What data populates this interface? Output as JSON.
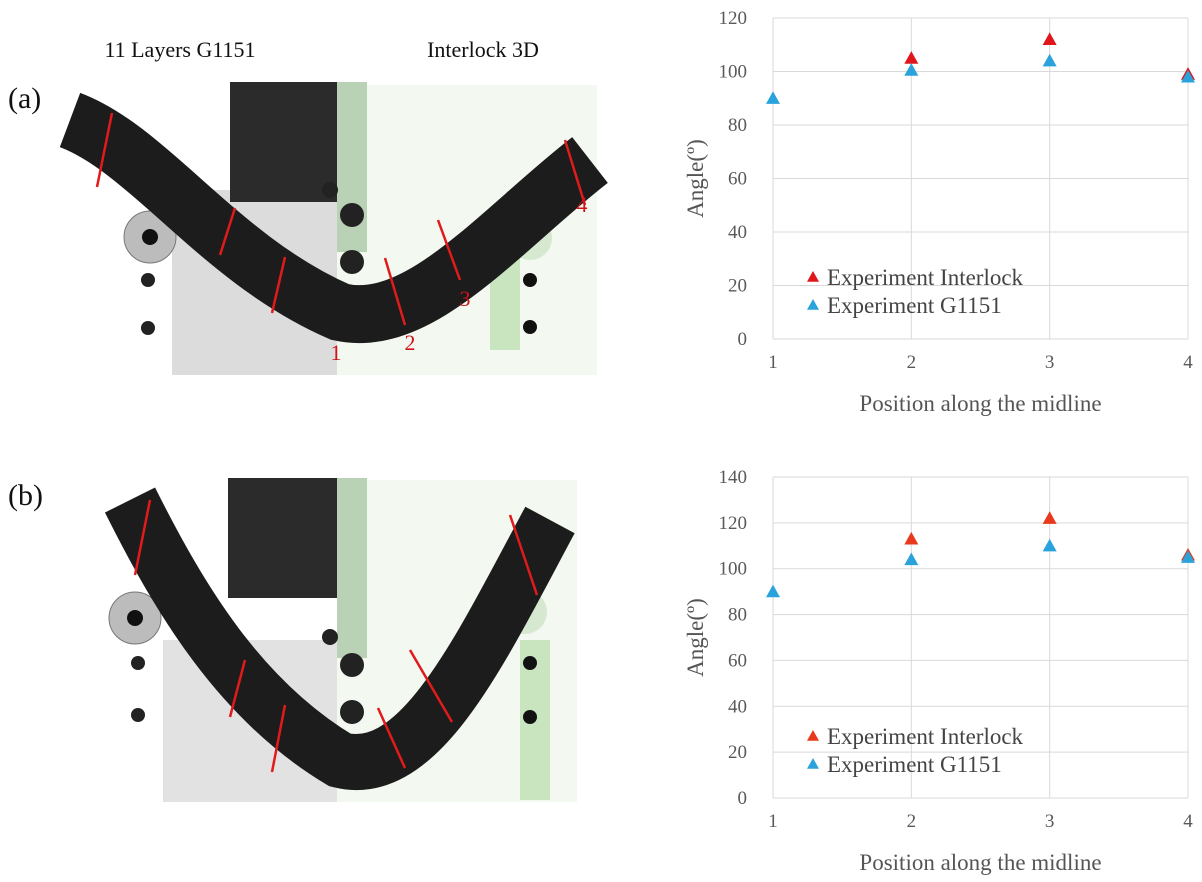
{
  "figure": {
    "column_titles": [
      "11 Layers G1151",
      "Interlock 3D"
    ],
    "panels": [
      {
        "label": "(a)",
        "markers": [
          "1",
          "2",
          "3",
          "4"
        ]
      },
      {
        "label": "(b)"
      }
    ]
  },
  "chart_data": [
    {
      "type": "scatter",
      "x_label": "Position along the midline",
      "y_label": "Angle(º)",
      "x": [
        1,
        2,
        3,
        4
      ],
      "xlim": [
        1,
        4
      ],
      "xticks": [
        1,
        2,
        3,
        4
      ],
      "ylim": [
        0,
        120
      ],
      "yticks": [
        0,
        20,
        40,
        60,
        80,
        100,
        120
      ],
      "grid": true,
      "legend": "lower left",
      "series": [
        {
          "name": "Experiment Interlock",
          "color": "#e0161b",
          "values": [
            null,
            105,
            112,
            99
          ]
        },
        {
          "name": "Experiment G1151",
          "color": "#2aa3dc",
          "values": [
            90,
            100.5,
            104,
            98
          ]
        }
      ]
    },
    {
      "type": "scatter",
      "x_label": "Position along the midline",
      "y_label": "Angle(º)",
      "x": [
        1,
        2,
        3,
        4
      ],
      "xlim": [
        1,
        4
      ],
      "xticks": [
        1,
        2,
        3,
        4
      ],
      "ylim": [
        0,
        140
      ],
      "yticks": [
        0,
        20,
        40,
        60,
        80,
        100,
        120,
        140
      ],
      "grid": true,
      "legend": "lower left",
      "series": [
        {
          "name": "Experiment Interlock",
          "color": "#e8391c",
          "values": [
            null,
            113,
            122,
            106
          ]
        },
        {
          "name": "Experiment G1151",
          "color": "#2aa3dc",
          "values": [
            90,
            104,
            110,
            105
          ]
        }
      ]
    }
  ]
}
